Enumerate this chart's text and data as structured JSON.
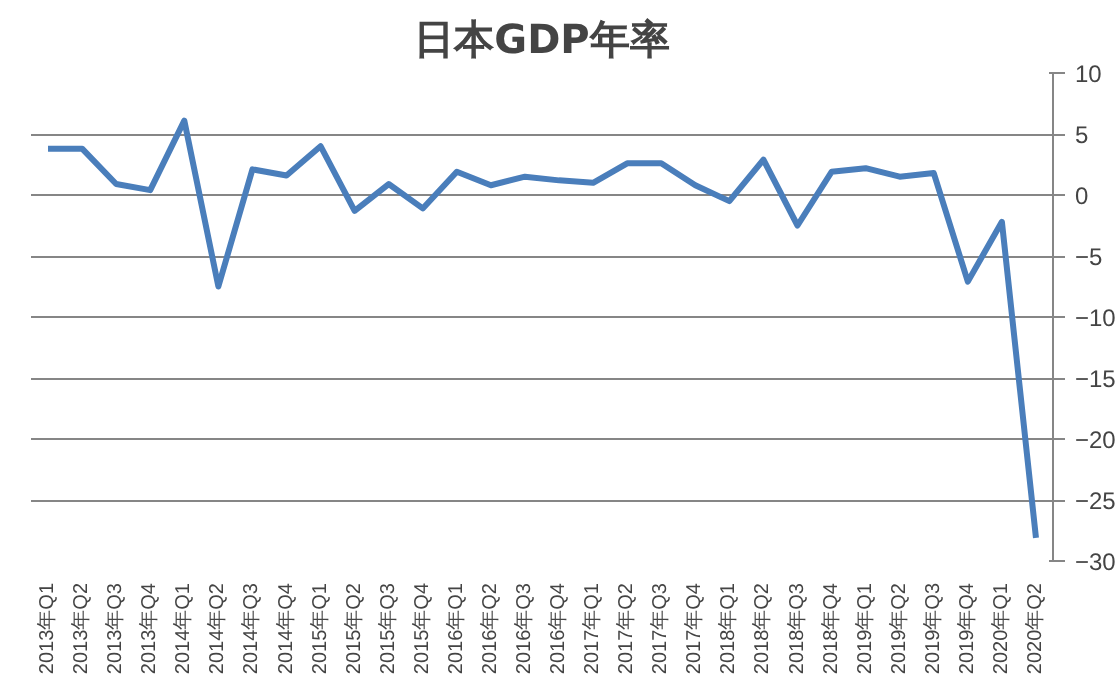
{
  "chart_data": {
    "type": "line",
    "title": "日本GDP年率",
    "categories": [
      "2013年Q1",
      "2013年Q2",
      "2013年Q3",
      "2013年Q4",
      "2014年Q1",
      "2014年Q2",
      "2014年Q3",
      "2014年Q4",
      "2015年Q1",
      "2015年Q2",
      "2015年Q3",
      "2015年Q4",
      "2016年Q1",
      "2016年Q2",
      "2016年Q3",
      "2016年Q4",
      "2017年Q1",
      "2017年Q2",
      "2017年Q3",
      "2017年Q4",
      "2018年Q1",
      "2018年Q2",
      "2018年Q3",
      "2018年Q4",
      "2019年Q1",
      "2019年Q2",
      "2019年Q3",
      "2019年Q4",
      "2020年Q1",
      "2020年Q2"
    ],
    "series": [
      {
        "color": "#4a7ebb",
        "values": [
          3.8,
          3.8,
          0.9,
          0.4,
          6.1,
          -7.5,
          2.1,
          1.6,
          4.0,
          -1.3,
          0.9,
          -1.1,
          1.9,
          0.8,
          1.5,
          1.2,
          1.0,
          2.6,
          2.6,
          0.8,
          -0.5,
          2.9,
          -2.5,
          1.9,
          2.2,
          1.5,
          1.8,
          -7.1,
          -2.2,
          -28.1
        ]
      }
    ],
    "ylim": [
      -30,
      10
    ],
    "yticks": [
      -30,
      -25,
      -20,
      -15,
      -10,
      -5,
      0,
      5,
      10
    ],
    "grid": "y",
    "marker": "none",
    "line_style": "solid"
  }
}
